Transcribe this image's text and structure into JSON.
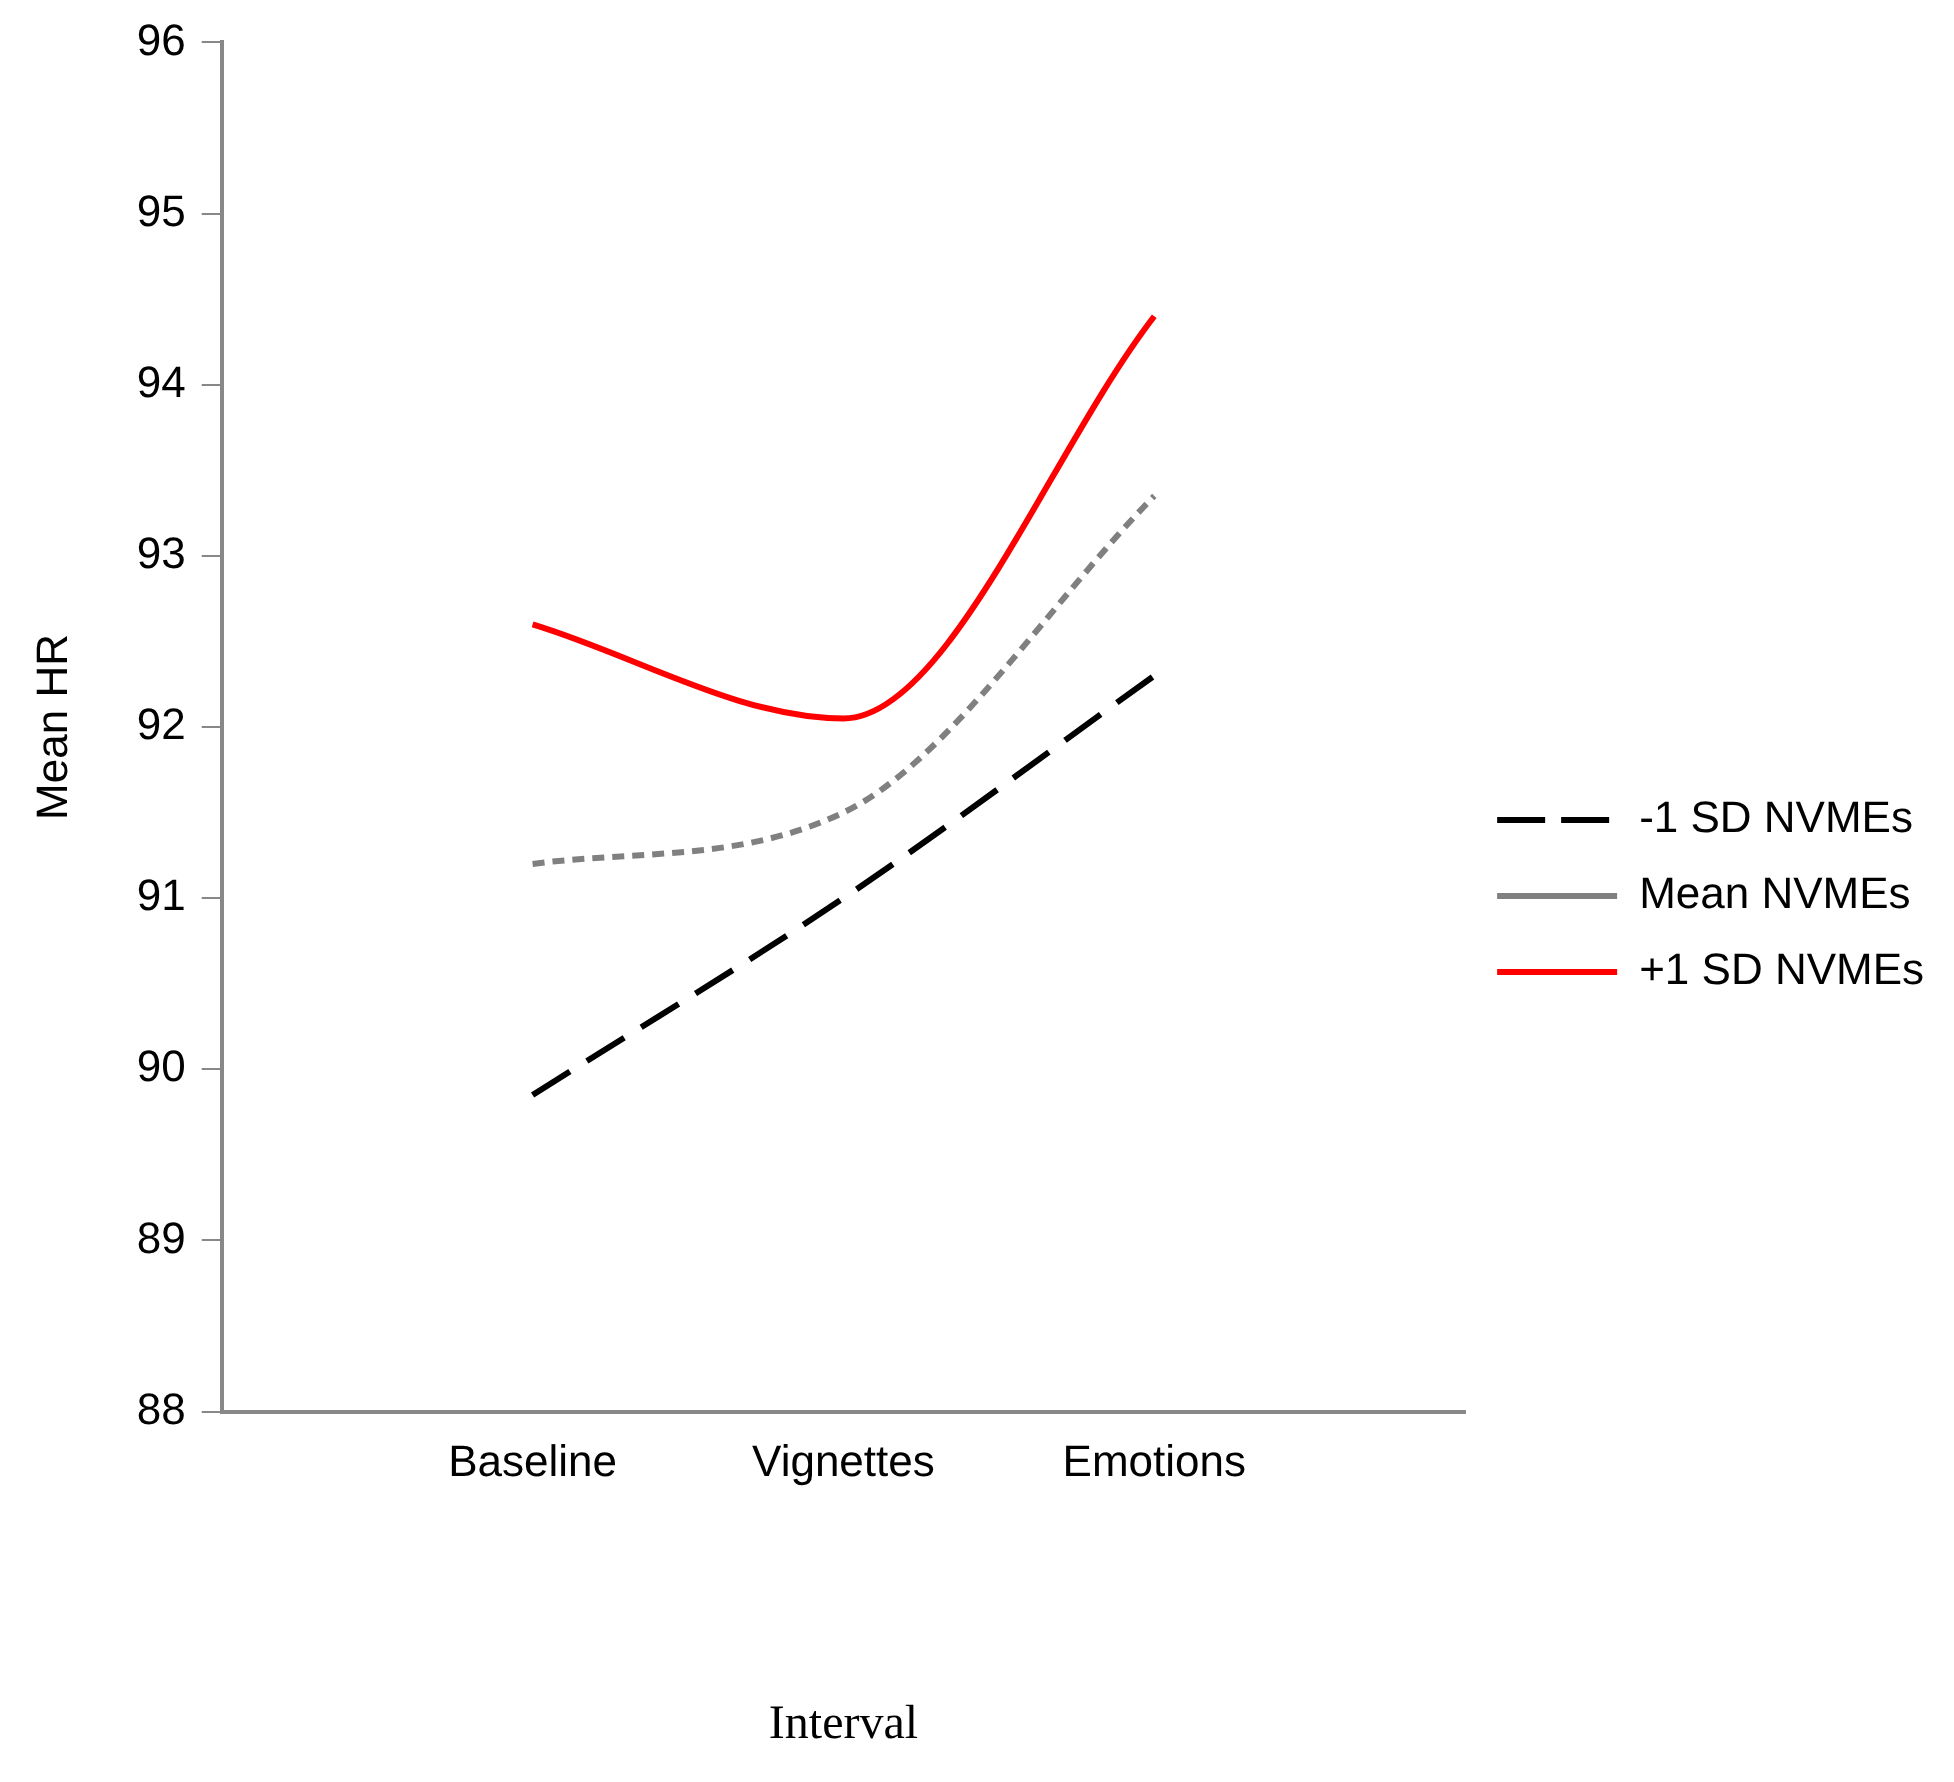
{
  "chart_data": {
    "type": "line",
    "xlabel": "Interval",
    "ylabel": "Mean HR",
    "categories": [
      null,
      "Baseline",
      "Vignettes",
      "Emotions",
      null
    ],
    "ylim": [
      88,
      96
    ],
    "yticks": [
      88,
      89,
      90,
      91,
      92,
      93,
      94,
      95,
      96
    ],
    "grid": false,
    "legend": "right",
    "marker": "none",
    "series": [
      {
        "name": "-1 SD NVMEs",
        "color": "#000000",
        "line_style": "dashed",
        "values": [
          null,
          89.85,
          91.0,
          92.3,
          null
        ]
      },
      {
        "name": "Mean NVMEs",
        "color": "#808080",
        "line_style": "dotted",
        "values": [
          null,
          91.2,
          91.5,
          93.35,
          null
        ]
      },
      {
        "name": "+1 SD NVMEs",
        "color": "#ff0000",
        "line_style": "solid",
        "values": [
          null,
          92.6,
          92.05,
          94.4,
          null
        ]
      }
    ]
  }
}
